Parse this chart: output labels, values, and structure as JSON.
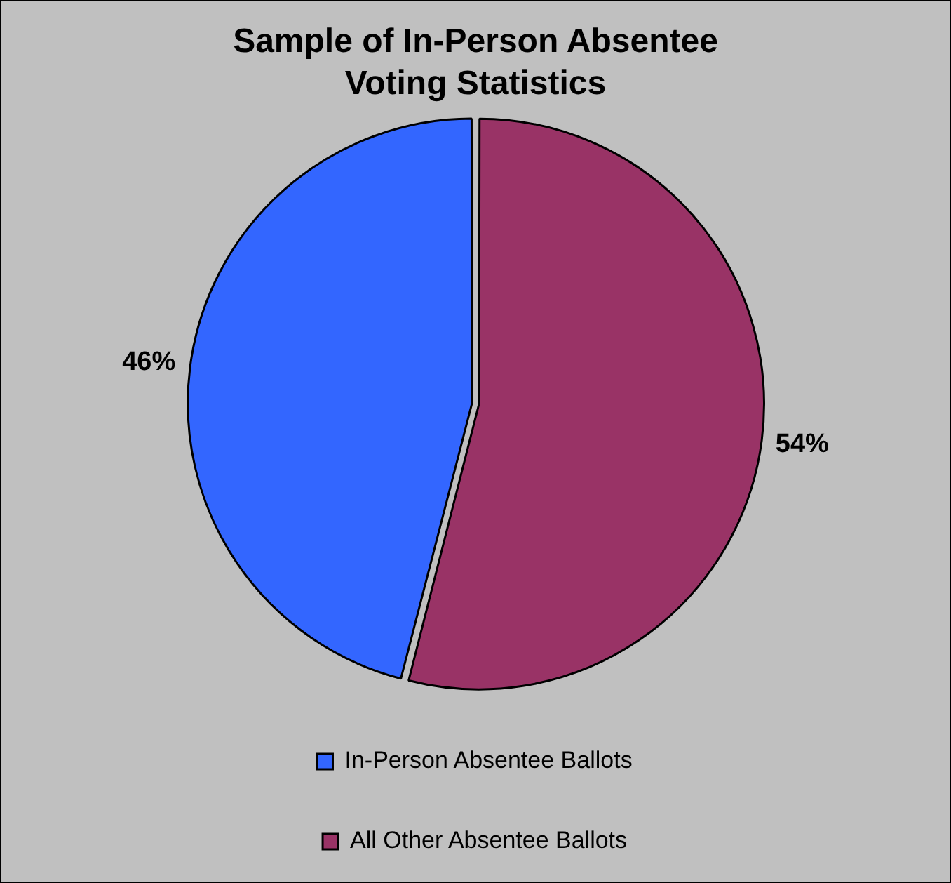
{
  "chart_data": {
    "type": "pie",
    "title": "Sample of In-Person Absentee Voting Statistics",
    "categories": [
      "In-Person Absentee Ballots",
      "All Other Absentee Ballots"
    ],
    "values": [
      46,
      54
    ],
    "colors": [
      "#3366ff",
      "#993366"
    ],
    "value_labels": [
      "46%",
      "54%"
    ],
    "legend": "bottom"
  }
}
